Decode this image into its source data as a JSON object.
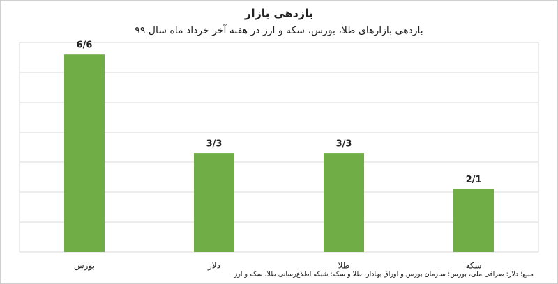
{
  "chart_data": {
    "type": "bar",
    "title": "بازدهی بازار",
    "subtitle": "بازدهی بازارهای طلا، بورس، سکه و ارز در هفته آخر خرداد ماه سال ۹۹",
    "categories": [
      "بورس",
      "دلار",
      "طلا",
      "سکه"
    ],
    "values": [
      6.6,
      3.3,
      3.3,
      2.1
    ],
    "value_labels": [
      "6/6",
      "3/3",
      "3/3",
      "2/1"
    ],
    "color": "#70ad47",
    "ylim": [
      0,
      7
    ],
    "yticks": [
      0,
      1,
      2,
      3,
      4,
      5,
      6,
      7
    ],
    "grid": true,
    "source": "منبع؛ دلار: صرافی ملی، بورس: سازمان بورس و اوراق بهادار، طلا و سکه: شبکه اطلاع‌رسانی طلا، سکه و ارز"
  }
}
